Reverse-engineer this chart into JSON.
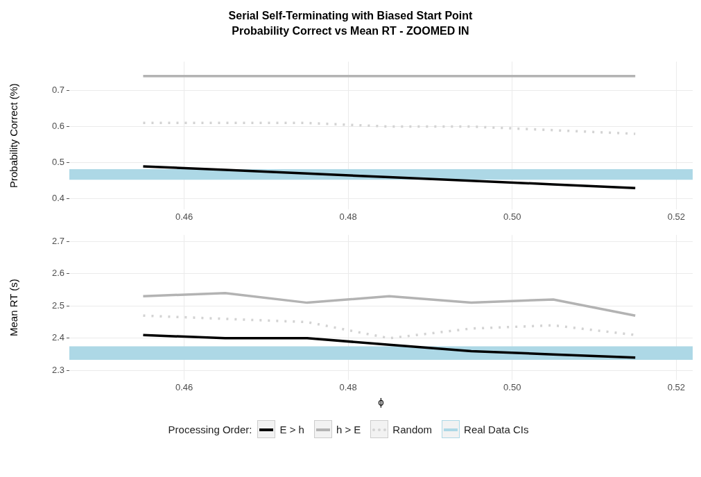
{
  "chart_data": [
    {
      "type": "line",
      "title": "Serial Self-Terminating with Biased Start Point",
      "subtitle": "Probability Correct vs Mean RT - ZOOMED IN",
      "ylabel": "Probability Correct (%)",
      "x": [
        0.455,
        0.465,
        0.475,
        0.485,
        0.495,
        0.505,
        0.515
      ],
      "series": [
        {
          "color": "#000000",
          "line_style": "solid",
          "values": [
            0.49,
            0.48,
            0.47,
            0.46,
            0.45,
            0.44,
            0.43
          ]
        },
        {
          "color": "#b3b3b3",
          "line_style": "solid",
          "values": [
            0.74,
            0.74,
            0.74,
            0.74,
            0.74,
            0.74,
            0.74
          ]
        },
        {
          "color": "#d3d3d3",
          "line_style": "dotted",
          "values": [
            0.61,
            0.61,
            0.61,
            0.6,
            0.6,
            0.59,
            0.58
          ]
        }
      ],
      "bands": [
        {
          "axis": "y",
          "from": 0.453,
          "to": 0.482,
          "color": "#add8e6"
        }
      ],
      "xlim": [
        0.446,
        0.522
      ],
      "xticks": [
        0.46,
        0.48,
        {
          "value": 0.5,
          "label": "0.50"
        },
        0.52
      ],
      "ylim": [
        0.37,
        0.78
      ],
      "yticks": [
        0.4,
        0.5,
        0.6,
        0.7
      ],
      "grid": true,
      "marker": "none"
    },
    {
      "type": "line",
      "xlabel": "ϕ",
      "ylabel": "Mean RT (s)",
      "legend_title": "Processing Order:",
      "x": [
        0.455,
        0.465,
        0.475,
        0.485,
        0.495,
        0.505,
        0.515
      ],
      "series": [
        {
          "name": "E > h",
          "color": "#000000",
          "line_style": "solid",
          "values": [
            2.41,
            2.4,
            2.4,
            2.38,
            2.36,
            2.35,
            2.34
          ]
        },
        {
          "name": "h > E",
          "color": "#b3b3b3",
          "line_style": "solid",
          "values": [
            2.53,
            2.54,
            2.51,
            2.53,
            2.51,
            2.52,
            2.47
          ]
        },
        {
          "name": "Random",
          "color": "#d3d3d3",
          "line_style": "dotted",
          "values": [
            2.47,
            2.46,
            2.45,
            2.4,
            2.43,
            2.44,
            2.41
          ]
        }
      ],
      "bands": [
        {
          "axis": "y",
          "from": 2.333,
          "to": 2.375,
          "label": "Real Data CIs",
          "color": "#add8e6"
        }
      ],
      "xlim": [
        0.446,
        0.522
      ],
      "xticks": [
        0.46,
        0.48,
        {
          "value": 0.5,
          "label": "0.50"
        },
        0.52
      ],
      "ylim": [
        2.27,
        2.72
      ],
      "yticks": [
        2.3,
        2.4,
        2.5,
        2.6,
        2.7
      ],
      "grid": true,
      "legend": "bottom",
      "marker": "none"
    }
  ]
}
